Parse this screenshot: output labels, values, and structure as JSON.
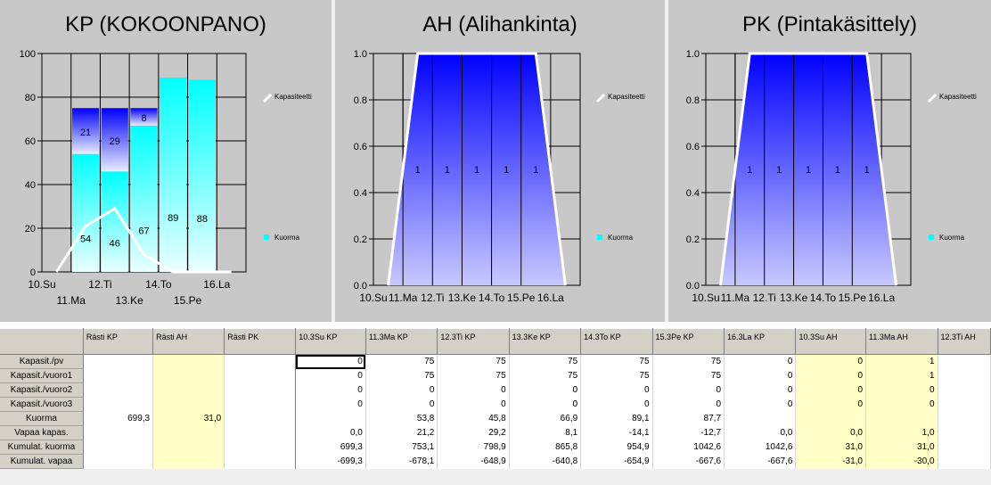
{
  "colors": {
    "panel_bg": "#c8c8c8",
    "load_fill": "#00ffff",
    "capacity_fill": "#0000ff",
    "capacity_line": "#ffffff",
    "highlight_cell": "#ffffc8"
  },
  "chart_data": [
    {
      "type": "bar",
      "title": "KP (KOKOONPANO)",
      "categories": [
        "10.Su",
        "11.Ma",
        "12.Ti",
        "13.Ke",
        "14.To",
        "15.Pe",
        "16.La"
      ],
      "ylim": [
        0,
        100
      ],
      "yticks": [
        "0",
        "20",
        "40",
        "60",
        "80",
        "100"
      ],
      "grid": true,
      "legend_position": "right",
      "series": [
        {
          "name": "Kuorma",
          "values": [
            0,
            54,
            46,
            67,
            89,
            88,
            0
          ],
          "labels": [
            "",
            "54",
            "46",
            "67",
            "89",
            "88",
            ""
          ],
          "color": "#00ffff"
        },
        {
          "values": [
            0,
            21,
            29,
            8,
            0,
            0,
            0
          ],
          "labels": [
            "",
            "21",
            "29",
            "8",
            "",
            "",
            ""
          ],
          "color": "#0000ff"
        },
        {
          "name": "Kapasiteetti",
          "type": "line",
          "values": [
            0,
            21,
            29,
            8,
            0,
            0,
            0
          ],
          "color": "#ffffff"
        }
      ]
    },
    {
      "type": "area",
      "title": "AH (Alihankinta)",
      "categories": [
        "10.Su",
        "11.Ma",
        "12.Ti",
        "13.Ke",
        "14.To",
        "15.Pe",
        "16.La"
      ],
      "ylim": [
        0,
        1
      ],
      "yticks": [
        "0.0",
        "0.2",
        "0.4",
        "0.6",
        "0.8",
        "1.0"
      ],
      "grid": true,
      "legend_position": "right",
      "series": [
        {
          "name": "Kapasiteetti",
          "type": "line",
          "values": [
            0,
            1,
            1,
            1,
            1,
            1,
            0
          ],
          "color": "#ffffff"
        },
        {
          "name": "Kuorma",
          "values": [
            0,
            0,
            0,
            0,
            0,
            0,
            0
          ],
          "color": "#00ffff"
        }
      ],
      "data_labels": [
        "",
        "1",
        "1",
        "1",
        "1",
        "1",
        ""
      ]
    },
    {
      "type": "area",
      "title": "PK (Pintakäsittely)",
      "categories": [
        "10.Su",
        "11.Ma",
        "12.Ti",
        "13.Ke",
        "14.To",
        "15.Pe",
        "16.La"
      ],
      "ylim": [
        0,
        1
      ],
      "yticks": [
        "0.0",
        "0.2",
        "0.4",
        "0.6",
        "0.8",
        "1.0"
      ],
      "grid": true,
      "legend_position": "right",
      "series": [
        {
          "name": "Kapasiteetti",
          "type": "line",
          "values": [
            0,
            1,
            1,
            1,
            1,
            1,
            0
          ],
          "color": "#ffffff"
        },
        {
          "name": "Kuorma",
          "values": [
            0,
            0,
            0,
            0,
            0,
            0,
            0
          ],
          "color": "#00ffff"
        }
      ],
      "data_labels": [
        "",
        "1",
        "1",
        "1",
        "1",
        "1",
        ""
      ]
    }
  ],
  "legend": {
    "capacity": "Kapasiteetti",
    "load": "Kuorma"
  },
  "grid_table": {
    "columns": [
      "",
      "Rästi KP",
      "Rästi AH",
      "Rästi PK",
      "10.3Su KP",
      "11.3Ma KP",
      "12.3Ti KP",
      "13.3Ke KP",
      "14.3To KP",
      "15.3Pe KP",
      "16.3La KP",
      "10.3Su AH",
      "11.3Ma AH",
      "12.3Ti AH"
    ],
    "rows": [
      {
        "label": "Kapasit./pv",
        "cells": [
          "",
          "",
          "",
          "0",
          "75",
          "75",
          "75",
          "75",
          "75",
          "0",
          "0",
          "1",
          ""
        ]
      },
      {
        "label": "Kapasit./vuoro1",
        "cells": [
          "",
          "",
          "",
          "0",
          "75",
          "75",
          "75",
          "75",
          "75",
          "0",
          "0",
          "1",
          ""
        ]
      },
      {
        "label": "Kapasit./vuoro2",
        "cells": [
          "",
          "",
          "",
          "0",
          "0",
          "0",
          "0",
          "0",
          "0",
          "0",
          "0",
          "0",
          ""
        ]
      },
      {
        "label": "Kapasit./vuoro3",
        "cells": [
          "",
          "",
          "",
          "0",
          "0",
          "0",
          "0",
          "0",
          "0",
          "0",
          "0",
          "0",
          ""
        ]
      },
      {
        "label": "Kuorma",
        "cells": [
          "699,3",
          "31,0",
          "",
          "",
          "53,8",
          "45,8",
          "66,9",
          "89,1",
          "87,7",
          "",
          "",
          "",
          ""
        ]
      },
      {
        "label": "Vapaa kapas.",
        "cells": [
          "",
          "",
          "",
          "0,0",
          "21,2",
          "29,2",
          "8,1",
          "-14,1",
          "-12,7",
          "0,0",
          "0,0",
          "1,0",
          ""
        ]
      },
      {
        "label": "Kumulat. kuorma",
        "cells": [
          "",
          "",
          "",
          "699,3",
          "753,1",
          "798,9",
          "865,8",
          "954,9",
          "1042,6",
          "1042,6",
          "31,0",
          "31,0",
          ""
        ]
      },
      {
        "label": "Kumulat. vapaa",
        "cells": [
          "",
          "",
          "",
          "-699,3",
          "-678,1",
          "-648,9",
          "-640,8",
          "-654,9",
          "-667,6",
          "-667,6",
          "-31,0",
          "-30,0",
          ""
        ]
      }
    ]
  }
}
